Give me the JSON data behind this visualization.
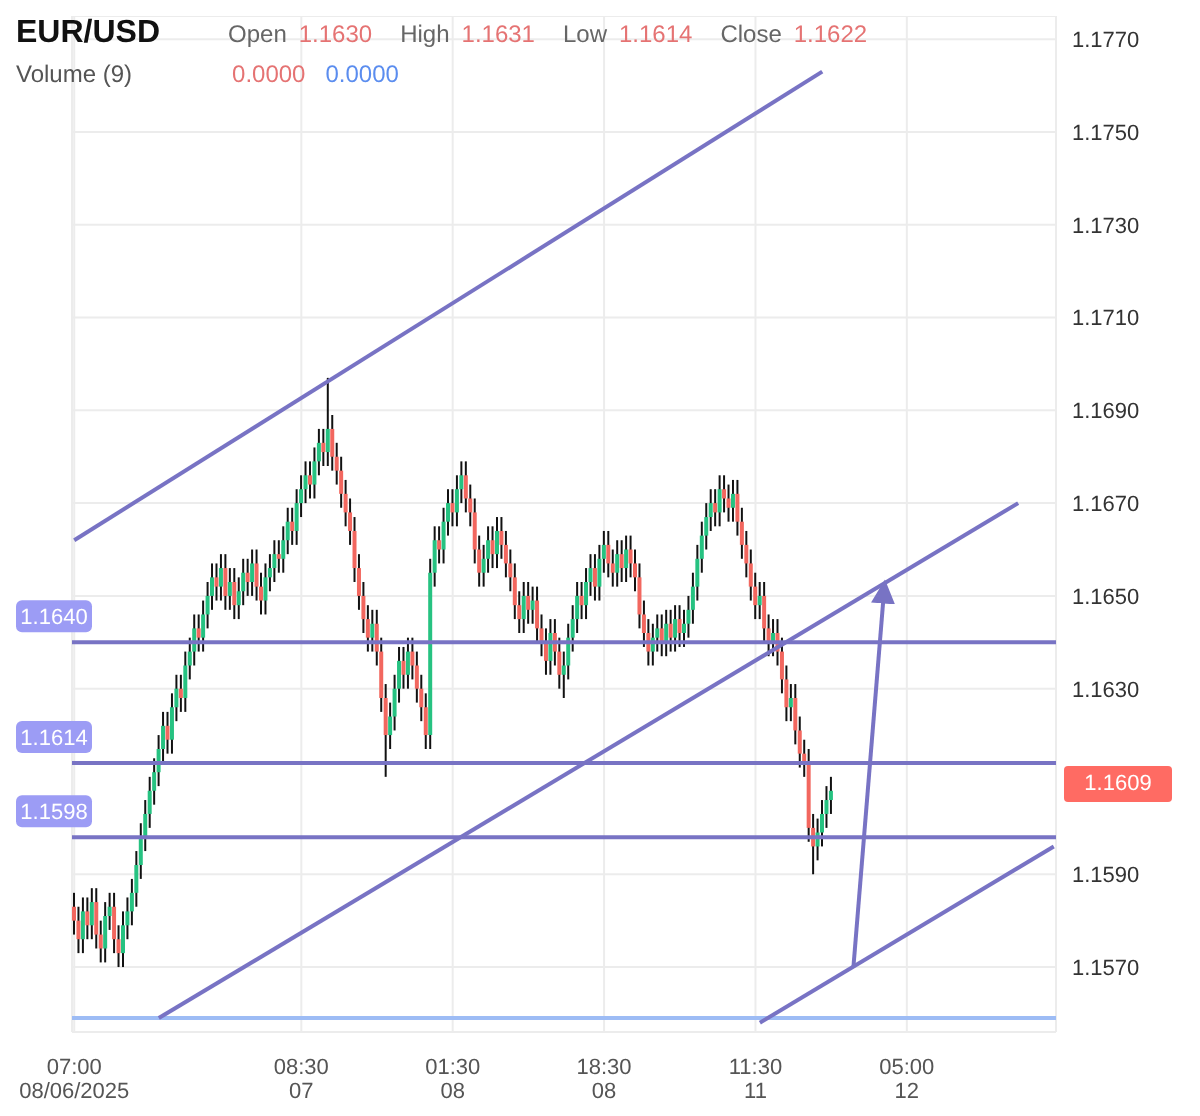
{
  "chart_data": {
    "type": "candlestick",
    "title": "EUR/USD",
    "annotations": [
      "Open",
      "1.1630",
      "High",
      "1.1631",
      "Low",
      "1.1614",
      "Close",
      "1.1622",
      "Volume (9)",
      "0.0000",
      "0.0000",
      "1.1609"
    ],
    "categories": [
      "07:00\n08/06/2025",
      null,
      null,
      null,
      null,
      null,
      null,
      null,
      null,
      null,
      null,
      null,
      null,
      null,
      null,
      null,
      null,
      null,
      null,
      null,
      null,
      null,
      null,
      null,
      null,
      null,
      null,
      null,
      null,
      null,
      null,
      null,
      null,
      null,
      null,
      null,
      null,
      null,
      null,
      null,
      null,
      null,
      null,
      null,
      null,
      null,
      null,
      null,
      null,
      null,
      null,
      "08:30\n07",
      null,
      null,
      null,
      null,
      null,
      null,
      null,
      null,
      null,
      null,
      null,
      null,
      null,
      null,
      null,
      null,
      null,
      null,
      null,
      null,
      null,
      null,
      null,
      null,
      null,
      null,
      null,
      null,
      null,
      null,
      null,
      null,
      null,
      "01:30\n08",
      null,
      null,
      null,
      null,
      null,
      null,
      null,
      null,
      null,
      null,
      null,
      null,
      null,
      null,
      null,
      null,
      null,
      null,
      null,
      null,
      null,
      null,
      null,
      null,
      null,
      null,
      null,
      null,
      null,
      null,
      null,
      null,
      null,
      "18:30\n08",
      null,
      null,
      null,
      null,
      null,
      null,
      null,
      null,
      null,
      null,
      null,
      null,
      null,
      null,
      null,
      null,
      null,
      null,
      null,
      null,
      null,
      null,
      null,
      null,
      null,
      null,
      null,
      null,
      null,
      null,
      null,
      null,
      null,
      "11:30\n11",
      null,
      null,
      null,
      null,
      null,
      null,
      null,
      null,
      null,
      null,
      null,
      null,
      null,
      null,
      null,
      null,
      null,
      null,
      null,
      null,
      null,
      null,
      null,
      null,
      null,
      null,
      null,
      null,
      null,
      null,
      null,
      null,
      null,
      "05:00\n12",
      null,
      null,
      null,
      null,
      null,
      null,
      null,
      null,
      null,
      null,
      null,
      null,
      null,
      null,
      null,
      null,
      null,
      null,
      null,
      null,
      null,
      null,
      null,
      null,
      null,
      null,
      null,
      null,
      null,
      null,
      null,
      null,
      null
    ],
    "ohlc": [
      [
        1.1583,
        1.1586,
        1.1577,
        1.158
      ],
      [
        1.158,
        1.1583,
        1.1573,
        1.1576
      ],
      [
        1.1576,
        1.1585,
        1.1573,
        1.1582
      ],
      [
        1.1582,
        1.1585,
        1.1576,
        1.1579
      ],
      [
        1.1579,
        1.1587,
        1.1576,
        1.1584
      ],
      [
        1.1584,
        1.1587,
        1.1574,
        1.1577
      ],
      [
        1.1577,
        1.158,
        1.1571,
        1.1574
      ],
      [
        1.1574,
        1.1584,
        1.1571,
        1.1581
      ],
      [
        1.1581,
        1.1586,
        1.1578,
        1.1583
      ],
      [
        1.1583,
        1.1586,
        1.1573,
        1.1576
      ],
      [
        1.1576,
        1.1579,
        1.157,
        1.1573
      ],
      [
        1.1573,
        1.1582,
        1.157,
        1.1579
      ],
      [
        1.1579,
        1.1585,
        1.1576,
        1.1582
      ],
      [
        1.1582,
        1.1589,
        1.1579,
        1.1586
      ],
      [
        1.1586,
        1.1595,
        1.1583,
        1.1592
      ],
      [
        1.1592,
        1.1601,
        1.1589,
        1.1598
      ],
      [
        1.1598,
        1.1606,
        1.1595,
        1.1603
      ],
      [
        1.1603,
        1.1611,
        1.16,
        1.1608
      ],
      [
        1.1608,
        1.1615,
        1.1605,
        1.1612
      ],
      [
        1.1612,
        1.162,
        1.1609,
        1.1617
      ],
      [
        1.1617,
        1.1625,
        1.1614,
        1.1622
      ],
      [
        1.1622,
        1.1625,
        1.1616,
        1.1619
      ],
      [
        1.1619,
        1.1629,
        1.1616,
        1.1626
      ],
      [
        1.1626,
        1.1633,
        1.1623,
        1.163
      ],
      [
        1.163,
        1.1633,
        1.1625,
        1.1628
      ],
      [
        1.1628,
        1.1638,
        1.1625,
        1.1635
      ],
      [
        1.1635,
        1.1641,
        1.1632,
        1.1638
      ],
      [
        1.1638,
        1.1646,
        1.1635,
        1.1643
      ],
      [
        1.1643,
        1.1646,
        1.1638,
        1.1641
      ],
      [
        1.1641,
        1.1649,
        1.1638,
        1.1646
      ],
      [
        1.1646,
        1.1653,
        1.1643,
        1.165
      ],
      [
        1.165,
        1.1657,
        1.1647,
        1.1654
      ],
      [
        1.1654,
        1.1657,
        1.1649,
        1.1652
      ],
      [
        1.1652,
        1.1659,
        1.1649,
        1.1656
      ],
      [
        1.1656,
        1.1659,
        1.1647,
        1.165
      ],
      [
        1.165,
        1.1656,
        1.1647,
        1.1653
      ],
      [
        1.1653,
        1.1656,
        1.1645,
        1.1648
      ],
      [
        1.1648,
        1.1654,
        1.1645,
        1.1651
      ],
      [
        1.1651,
        1.1658,
        1.1648,
        1.1655
      ],
      [
        1.1655,
        1.1658,
        1.165,
        1.1653
      ],
      [
        1.1653,
        1.166,
        1.165,
        1.1657
      ],
      [
        1.1657,
        1.166,
        1.1649,
        1.1652
      ],
      [
        1.1652,
        1.1655,
        1.1646,
        1.1649
      ],
      [
        1.1649,
        1.1657,
        1.1646,
        1.1654
      ],
      [
        1.1654,
        1.1659,
        1.1651,
        1.1656
      ],
      [
        1.1656,
        1.1662,
        1.1653,
        1.1659
      ],
      [
        1.1659,
        1.1662,
        1.1655,
        1.1658
      ],
      [
        1.1658,
        1.1665,
        1.1655,
        1.1662
      ],
      [
        1.1662,
        1.1669,
        1.1659,
        1.1666
      ],
      [
        1.1666,
        1.1669,
        1.1661,
        1.1664
      ],
      [
        1.1664,
        1.1673,
        1.1661,
        1.167
      ],
      [
        1.167,
        1.1676,
        1.1667,
        1.1673
      ],
      [
        1.1673,
        1.1679,
        1.167,
        1.1676
      ],
      [
        1.1676,
        1.1679,
        1.1671,
        1.1674
      ],
      [
        1.1674,
        1.1682,
        1.1671,
        1.1679
      ],
      [
        1.1679,
        1.1686,
        1.1676,
        1.1683
      ],
      [
        1.1683,
        1.1686,
        1.1678,
        1.1681
      ],
      [
        1.1681,
        1.1697,
        1.1678,
        1.1686
      ],
      [
        1.1686,
        1.1689,
        1.1677,
        1.168
      ],
      [
        1.168,
        1.1683,
        1.1674,
        1.1677
      ],
      [
        1.1677,
        1.168,
        1.1669,
        1.1672
      ],
      [
        1.1672,
        1.1675,
        1.1665,
        1.1668
      ],
      [
        1.1668,
        1.1671,
        1.1661,
        1.1664
      ],
      [
        1.1664,
        1.1667,
        1.1653,
        1.1656
      ],
      [
        1.1656,
        1.1659,
        1.1647,
        1.165
      ],
      [
        1.165,
        1.1653,
        1.1642,
        1.1645
      ],
      [
        1.1645,
        1.1648,
        1.1638,
        1.1641
      ],
      [
        1.1641,
        1.1647,
        1.1638,
        1.1644
      ],
      [
        1.1644,
        1.1647,
        1.1635,
        1.1638
      ],
      [
        1.1638,
        1.1641,
        1.1625,
        1.1628
      ],
      [
        1.1628,
        1.1631,
        1.1611,
        1.162
      ],
      [
        1.162,
        1.1627,
        1.1617,
        1.1624
      ],
      [
        1.1624,
        1.1633,
        1.1621,
        1.163
      ],
      [
        1.163,
        1.1639,
        1.1627,
        1.1636
      ],
      [
        1.1636,
        1.1639,
        1.163,
        1.1633
      ],
      [
        1.1633,
        1.1641,
        1.163,
        1.1638
      ],
      [
        1.1638,
        1.1641,
        1.1632,
        1.1635
      ],
      [
        1.1635,
        1.1638,
        1.1627,
        1.163
      ],
      [
        1.163,
        1.1633,
        1.1623,
        1.1626
      ],
      [
        1.1626,
        1.1629,
        1.1617,
        1.162
      ],
      [
        1.162,
        1.1658,
        1.1617,
        1.1655
      ],
      [
        1.1655,
        1.1665,
        1.1652,
        1.1662
      ],
      [
        1.1662,
        1.1665,
        1.1657,
        1.166
      ],
      [
        1.166,
        1.1669,
        1.1657,
        1.1666
      ],
      [
        1.1666,
        1.1673,
        1.1663,
        1.167
      ],
      [
        1.167,
        1.1673,
        1.1665,
        1.1668
      ],
      [
        1.1668,
        1.1676,
        1.1665,
        1.1673
      ],
      [
        1.1673,
        1.1679,
        1.167,
        1.1676
      ],
      [
        1.1676,
        1.1679,
        1.1668,
        1.1671
      ],
      [
        1.1671,
        1.1674,
        1.1665,
        1.1668
      ],
      [
        1.1668,
        1.1671,
        1.1657,
        1.166
      ],
      [
        1.166,
        1.1663,
        1.1652,
        1.1655
      ],
      [
        1.1655,
        1.1661,
        1.1652,
        1.1658
      ],
      [
        1.1658,
        1.1665,
        1.1655,
        1.1662
      ],
      [
        1.1662,
        1.1665,
        1.1656,
        1.1659
      ],
      [
        1.1659,
        1.1667,
        1.1656,
        1.1664
      ],
      [
        1.1664,
        1.1667,
        1.1658,
        1.1661
      ],
      [
        1.1661,
        1.1664,
        1.1654,
        1.1657
      ],
      [
        1.1657,
        1.166,
        1.1651,
        1.1654
      ],
      [
        1.1654,
        1.1657,
        1.1645,
        1.1648
      ],
      [
        1.1648,
        1.1651,
        1.1642,
        1.1645
      ],
      [
        1.1645,
        1.1653,
        1.1642,
        1.165
      ],
      [
        1.165,
        1.1653,
        1.1644,
        1.1647
      ],
      [
        1.1647,
        1.1652,
        1.1644,
        1.1649
      ],
      [
        1.1649,
        1.1652,
        1.164,
        1.1643
      ],
      [
        1.1643,
        1.1646,
        1.1637,
        1.164
      ],
      [
        1.164,
        1.1643,
        1.1633,
        1.1636
      ],
      [
        1.1636,
        1.1645,
        1.1633,
        1.1642
      ],
      [
        1.1642,
        1.1645,
        1.1635,
        1.1638
      ],
      [
        1.1638,
        1.1641,
        1.163,
        1.1633
      ],
      [
        1.1633,
        1.1638,
        1.1628,
        1.1635
      ],
      [
        1.1635,
        1.1644,
        1.1632,
        1.1641
      ],
      [
        1.1641,
        1.1648,
        1.1638,
        1.1645
      ],
      [
        1.1645,
        1.1653,
        1.1642,
        1.165
      ],
      [
        1.165,
        1.1653,
        1.1645,
        1.1648
      ],
      [
        1.1648,
        1.1656,
        1.1645,
        1.1653
      ],
      [
        1.1653,
        1.1659,
        1.165,
        1.1656
      ],
      [
        1.1656,
        1.1659,
        1.1649,
        1.1652
      ],
      [
        1.1652,
        1.1661,
        1.1649,
        1.1658
      ],
      [
        1.1658,
        1.1664,
        1.1655,
        1.1661
      ],
      [
        1.1661,
        1.1664,
        1.1654,
        1.1657
      ],
      [
        1.1657,
        1.166,
        1.1652,
        1.1655
      ],
      [
        1.1655,
        1.1662,
        1.1652,
        1.1659
      ],
      [
        1.1659,
        1.1662,
        1.1653,
        1.1656
      ],
      [
        1.1656,
        1.1663,
        1.1653,
        1.166
      ],
      [
        1.166,
        1.1663,
        1.1654,
        1.1657
      ],
      [
        1.1657,
        1.166,
        1.1651,
        1.1654
      ],
      [
        1.1654,
        1.1657,
        1.1643,
        1.1646
      ],
      [
        1.1646,
        1.1649,
        1.1639,
        1.1642
      ],
      [
        1.1642,
        1.1645,
        1.1635,
        1.1638
      ],
      [
        1.1638,
        1.1644,
        1.1635,
        1.1641
      ],
      [
        1.1641,
        1.1646,
        1.1638,
        1.1643
      ],
      [
        1.1643,
        1.1646,
        1.1637,
        1.164
      ],
      [
        1.164,
        1.1647,
        1.1637,
        1.1644
      ],
      [
        1.1644,
        1.1647,
        1.1638,
        1.1641
      ],
      [
        1.1641,
        1.1648,
        1.1638,
        1.1645
      ],
      [
        1.1645,
        1.1648,
        1.1639,
        1.1642
      ],
      [
        1.1642,
        1.1647,
        1.1639,
        1.1644
      ],
      [
        1.1644,
        1.165,
        1.1641,
        1.1647
      ],
      [
        1.1647,
        1.1655,
        1.1644,
        1.1652
      ],
      [
        1.1652,
        1.1661,
        1.1649,
        1.1658
      ],
      [
        1.1658,
        1.1666,
        1.1655,
        1.1663
      ],
      [
        1.1663,
        1.167,
        1.166,
        1.1667
      ],
      [
        1.1667,
        1.1673,
        1.1664,
        1.167
      ],
      [
        1.167,
        1.1673,
        1.1665,
        1.1668
      ],
      [
        1.1668,
        1.1676,
        1.1665,
        1.1673
      ],
      [
        1.1673,
        1.1676,
        1.1668,
        1.1671
      ],
      [
        1.1671,
        1.1674,
        1.1666,
        1.1669
      ],
      [
        1.1669,
        1.1675,
        1.1666,
        1.1672
      ],
      [
        1.1672,
        1.1675,
        1.1663,
        1.1666
      ],
      [
        1.1666,
        1.1669,
        1.1658,
        1.1661
      ],
      [
        1.1661,
        1.1664,
        1.1654,
        1.1657
      ],
      [
        1.1657,
        1.166,
        1.1649,
        1.1652
      ],
      [
        1.1652,
        1.1655,
        1.1645,
        1.1648
      ],
      [
        1.1648,
        1.1653,
        1.1645,
        1.165
      ],
      [
        1.165,
        1.1653,
        1.164,
        1.1643
      ],
      [
        1.1643,
        1.1646,
        1.1637,
        1.164
      ],
      [
        1.164,
        1.1645,
        1.1637,
        1.1642
      ],
      [
        1.1642,
        1.1645,
        1.1635,
        1.1638
      ],
      [
        1.1638,
        1.1641,
        1.1629,
        1.1632
      ],
      [
        1.1632,
        1.1635,
        1.1623,
        1.1626
      ],
      [
        1.1626,
        1.1631,
        1.1623,
        1.1628
      ],
      [
        1.1628,
        1.1631,
        1.1618,
        1.1621
      ],
      [
        1.1621,
        1.1624,
        1.1613,
        1.1616
      ],
      [
        1.1616,
        1.1619,
        1.1611,
        1.1614
      ],
      [
        1.1614,
        1.1617,
        1.1597,
        1.16
      ],
      [
        1.16,
        1.1603,
        1.159,
        1.1596
      ],
      [
        1.1596,
        1.1602,
        1.1593,
        1.1599
      ],
      [
        1.1599,
        1.1606,
        1.1596,
        1.1603
      ],
      [
        1.1603,
        1.1609,
        1.16,
        1.1606
      ],
      [
        1.1606,
        1.1611,
        1.1603,
        1.1608
      ],
      null,
      null,
      null,
      null,
      null,
      null,
      null,
      null,
      null,
      null,
      null,
      null,
      null,
      null,
      null,
      null,
      null,
      null,
      null,
      null,
      null,
      null,
      null,
      null,
      null,
      null,
      null,
      null,
      null,
      null,
      null,
      null,
      null,
      null,
      null,
      null,
      null,
      null,
      null,
      null,
      null,
      null,
      null,
      null,
      null,
      null,
      null,
      null,
      null,
      null
    ],
    "series": [
      {
        "type": "line",
        "color": "#7873c4",
        "values": [
          1.1662,
          null,
          null,
          null,
          null,
          null,
          null,
          null,
          null,
          null,
          null,
          null,
          null,
          null,
          null,
          null,
          null,
          null,
          null,
          null,
          null,
          null,
          null,
          null,
          null,
          null,
          null,
          null,
          null,
          null,
          null,
          null,
          null,
          null,
          null,
          null,
          null,
          null,
          null,
          null,
          null,
          null,
          null,
          null,
          null,
          null,
          null,
          null,
          null,
          null,
          null,
          null,
          null,
          null,
          null,
          null,
          null,
          null,
          null,
          null,
          null,
          null,
          null,
          null,
          null,
          null,
          null,
          null,
          null,
          null,
          null,
          null,
          null,
          null,
          null,
          null,
          null,
          null,
          null,
          null,
          null,
          null,
          null,
          null,
          null,
          null,
          null,
          null,
          null,
          null,
          null,
          null,
          null,
          null,
          null,
          null,
          null,
          null,
          null,
          null,
          null,
          null,
          null,
          null,
          null,
          null,
          null,
          null,
          null,
          null,
          null,
          null,
          null,
          null,
          null,
          null,
          null,
          null,
          null,
          null,
          null,
          null,
          null,
          null,
          null,
          null,
          null,
          null,
          null,
          null,
          null,
          null,
          null,
          null,
          null,
          null,
          null,
          null,
          null,
          null,
          null,
          null,
          null,
          null,
          null,
          null,
          null,
          null,
          null,
          null,
          null,
          null,
          null,
          null,
          null,
          null,
          null,
          null,
          null,
          null,
          null,
          null,
          null,
          null,
          null,
          null,
          null,
          null,
          1.1763,
          null,
          null,
          null,
          null,
          null,
          null,
          null,
          null,
          null,
          null,
          null,
          null,
          null,
          null,
          null,
          null,
          null,
          null,
          null,
          null,
          null,
          null,
          null,
          null,
          null,
          null,
          null,
          null,
          null,
          null,
          null,
          null,
          null,
          null,
          null,
          null,
          null,
          null,
          null,
          null,
          null,
          null,
          null,
          null,
          null,
          null,
          null,
          null,
          null,
          null,
          null,
          null
        ]
      },
      {
        "type": "line",
        "color": "#7873c4",
        "values": [
          null,
          null,
          null,
          null,
          null,
          null,
          null,
          null,
          null,
          null,
          null,
          null,
          null,
          null,
          null,
          null,
          null,
          null,
          null,
          1.1559,
          null,
          null,
          null,
          null,
          null,
          null,
          null,
          null,
          null,
          null,
          null,
          null,
          null,
          null,
          null,
          null,
          null,
          null,
          null,
          null,
          null,
          null,
          null,
          null,
          null,
          null,
          null,
          null,
          null,
          null,
          null,
          null,
          null,
          null,
          null,
          null,
          null,
          null,
          null,
          null,
          null,
          null,
          null,
          null,
          null,
          null,
          null,
          null,
          null,
          null,
          null,
          null,
          null,
          null,
          null,
          null,
          null,
          null,
          null,
          null,
          null,
          null,
          null,
          null,
          null,
          null,
          null,
          null,
          null,
          null,
          null,
          null,
          null,
          null,
          null,
          null,
          null,
          null,
          null,
          null,
          null,
          null,
          null,
          null,
          null,
          null,
          null,
          null,
          null,
          null,
          null,
          null,
          null,
          null,
          null,
          null,
          null,
          null,
          null,
          null,
          null,
          null,
          null,
          null,
          null,
          null,
          null,
          null,
          null,
          null,
          null,
          null,
          null,
          null,
          null,
          null,
          null,
          null,
          null,
          null,
          null,
          null,
          null,
          null,
          null,
          null,
          null,
          null,
          null,
          null,
          null,
          null,
          null,
          null,
          null,
          null,
          null,
          null,
          null,
          null,
          null,
          null,
          null,
          null,
          null,
          null,
          null,
          null,
          null,
          null,
          null,
          null,
          null,
          null,
          null,
          null,
          null,
          null,
          null,
          null,
          null,
          null,
          null,
          null,
          null,
          null,
          null,
          null,
          null,
          null,
          null,
          null,
          null,
          null,
          null,
          null,
          null,
          null,
          null,
          null,
          null,
          null,
          null,
          null,
          null,
          null,
          null,
          null,
          null,
          null,
          null,
          null,
          1.167,
          null,
          null,
          null,
          null,
          null,
          null,
          null,
          null
        ]
      },
      {
        "type": "line",
        "color": "#7873c4",
        "values": [
          null,
          null,
          null,
          null,
          null,
          null,
          null,
          null,
          null,
          null,
          null,
          null,
          null,
          null,
          null,
          null,
          null,
          null,
          null,
          null,
          null,
          null,
          null,
          null,
          null,
          null,
          null,
          null,
          null,
          null,
          null,
          null,
          null,
          null,
          null,
          null,
          null,
          null,
          null,
          null,
          null,
          null,
          null,
          null,
          null,
          null,
          null,
          null,
          null,
          null,
          null,
          null,
          null,
          null,
          null,
          null,
          null,
          null,
          null,
          null,
          null,
          null,
          null,
          null,
          null,
          null,
          null,
          null,
          null,
          null,
          null,
          null,
          null,
          null,
          null,
          null,
          null,
          null,
          null,
          null,
          null,
          null,
          null,
          null,
          null,
          null,
          null,
          null,
          null,
          null,
          null,
          null,
          null,
          null,
          null,
          null,
          null,
          null,
          null,
          null,
          null,
          null,
          null,
          null,
          null,
          null,
          null,
          null,
          null,
          null,
          null,
          null,
          null,
          null,
          null,
          null,
          null,
          null,
          null,
          null,
          null,
          null,
          null,
          null,
          null,
          null,
          null,
          null,
          null,
          null,
          null,
          null,
          null,
          null,
          null,
          null,
          null,
          null,
          null,
          null,
          null,
          null,
          null,
          null,
          null,
          null,
          null,
          null,
          null,
          null,
          null,
          null,
          null,
          null,
          1.1558,
          null,
          null,
          null,
          null,
          null,
          null,
          null,
          null,
          null,
          null,
          null,
          null,
          null,
          null,
          null,
          null,
          null,
          null,
          null,
          null,
          null,
          null,
          null,
          null,
          null,
          null,
          null,
          null,
          null,
          null,
          null,
          null,
          null,
          null,
          null,
          null,
          null,
          null,
          null,
          null,
          null,
          null,
          null,
          null,
          null,
          null,
          null,
          null,
          null,
          null,
          null,
          null,
          null,
          null,
          null,
          null,
          null,
          null,
          null,
          null,
          null,
          null,
          null,
          null,
          null,
          1.1596
        ]
      },
      {
        "type": "line",
        "color": "#7873c4",
        "values": [
          null,
          null,
          null,
          null,
          null,
          null,
          null,
          null,
          null,
          null,
          null,
          null,
          null,
          null,
          null,
          null,
          null,
          null,
          null,
          null,
          null,
          null,
          null,
          null,
          null,
          null,
          null,
          null,
          null,
          null,
          null,
          null,
          null,
          null,
          null,
          null,
          null,
          null,
          null,
          null,
          null,
          null,
          null,
          null,
          null,
          null,
          null,
          null,
          null,
          null,
          null,
          null,
          null,
          null,
          null,
          null,
          null,
          null,
          null,
          null,
          null,
          null,
          null,
          null,
          null,
          null,
          null,
          null,
          null,
          null,
          null,
          null,
          null,
          null,
          null,
          null,
          null,
          null,
          null,
          null,
          null,
          null,
          null,
          null,
          null,
          null,
          null,
          null,
          null,
          null,
          null,
          null,
          null,
          null,
          null,
          null,
          null,
          null,
          null,
          null,
          null,
          null,
          null,
          null,
          null,
          null,
          null,
          null,
          null,
          null,
          null,
          null,
          null,
          null,
          null,
          null,
          null,
          null,
          null,
          null,
          null,
          null,
          null,
          null,
          null,
          null,
          null,
          null,
          null,
          null,
          null,
          null,
          null,
          null,
          null,
          null,
          null,
          null,
          null,
          null,
          null,
          null,
          null,
          null,
          null,
          null,
          null,
          null,
          null,
          null,
          null,
          null,
          null,
          null,
          null,
          null,
          null,
          null,
          null,
          null,
          null,
          null,
          null,
          null,
          null,
          null,
          null,
          null,
          null,
          null,
          null,
          null,
          null,
          null,
          null,
          1.157,
          null,
          null,
          null,
          null,
          null,
          null,
          1.16525,
          null,
          null,
          null,
          null,
          null,
          null,
          null,
          null,
          null,
          null,
          null,
          null,
          null,
          null,
          null,
          null,
          null,
          null,
          null,
          null,
          null,
          null,
          null,
          null,
          null,
          null,
          null,
          null,
          null,
          null,
          null,
          null,
          null,
          null,
          null,
          null,
          null,
          null
        ]
      }
    ],
    "ref_lines": [
      {
        "axis": "y",
        "value": 1.164,
        "label": "1.1640",
        "color": "#7873c4"
      },
      {
        "axis": "y",
        "value": 1.1614,
        "label": "1.1614",
        "color": "#7873c4"
      },
      {
        "axis": "y",
        "value": 1.1598,
        "label": "1.1598",
        "color": "#7873c4"
      },
      {
        "axis": "y",
        "value": 1.1559,
        "color": "#9dbcf5"
      }
    ],
    "ylim": [
      1.1556,
      1.1775
    ],
    "yticks": [
      {
        "value": 1.157,
        "label": "1.1570"
      },
      {
        "value": 1.159,
        "label": "1.1590"
      },
      {
        "value": 1.163,
        "label": "1.1630"
      },
      {
        "value": 1.165,
        "label": "1.1650"
      },
      {
        "value": 1.167,
        "label": "1.1670"
      },
      {
        "value": 1.169,
        "label": "1.1690"
      },
      {
        "value": 1.171,
        "label": "1.1710"
      },
      {
        "value": 1.173,
        "label": "1.1730"
      },
      {
        "value": 1.175,
        "label": "1.1750"
      },
      {
        "value": 1.177,
        "label": "1.1770"
      }
    ],
    "grid": true
  }
}
